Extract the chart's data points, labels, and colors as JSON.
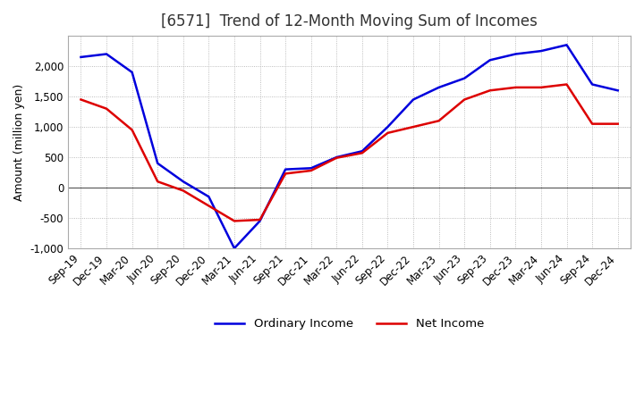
{
  "title": "[6571]  Trend of 12-Month Moving Sum of Incomes",
  "ylabel": "Amount (million yen)",
  "x_labels": [
    "Sep-19",
    "Dec-19",
    "Mar-20",
    "Jun-20",
    "Sep-20",
    "Dec-20",
    "Mar-21",
    "Jun-21",
    "Sep-21",
    "Dec-21",
    "Mar-22",
    "Jun-22",
    "Sep-22",
    "Dec-22",
    "Mar-23",
    "Jun-23",
    "Sep-23",
    "Dec-23",
    "Mar-24",
    "Jun-24",
    "Sep-24",
    "Dec-24"
  ],
  "ordinary_income": [
    2150,
    2200,
    1900,
    400,
    100,
    -150,
    -1000,
    -550,
    300,
    320,
    500,
    600,
    1000,
    1450,
    1650,
    1800,
    2100,
    2200,
    2250,
    2350,
    1700,
    1600
  ],
  "net_income": [
    1450,
    1300,
    950,
    100,
    -50,
    -300,
    -550,
    -530,
    230,
    280,
    490,
    570,
    900,
    1000,
    1100,
    1450,
    1600,
    1650,
    1650,
    1700,
    1050,
    1050
  ],
  "ordinary_color": "#0000dd",
  "net_color": "#dd0000",
  "ylim": [
    -1000,
    2500
  ],
  "yticks": [
    -1000,
    -500,
    0,
    500,
    1000,
    1500,
    2000
  ],
  "bg_color": "#ffffff",
  "grid_color": "#aaaaaa",
  "title_fontsize": 12,
  "axis_fontsize": 9,
  "tick_fontsize": 8.5
}
